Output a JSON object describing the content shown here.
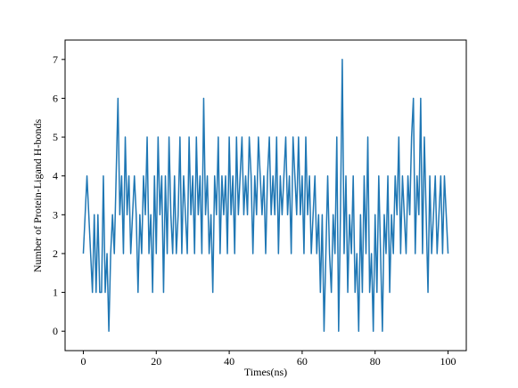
{
  "chart_data": {
    "type": "line",
    "xlabel": "Times(ns)",
    "ylabel": "Number of Protein-Ligand H-bonds",
    "color": "#1f77b4",
    "xlim": [
      -5,
      105
    ],
    "ylim": [
      -0.5,
      7.5
    ],
    "xticks": [
      0,
      20,
      40,
      60,
      80,
      100
    ],
    "yticks": [
      0,
      1,
      2,
      3,
      4,
      5,
      6,
      7
    ],
    "grid": false,
    "x": [
      0,
      0.5,
      1,
      1.5,
      2,
      2.5,
      3,
      3.5,
      4,
      4.5,
      5,
      5.5,
      6,
      6.5,
      7,
      7.5,
      8,
      8.5,
      9,
      9.5,
      10,
      10.5,
      11,
      11.5,
      12,
      12.5,
      13,
      13.5,
      14,
      14.5,
      15,
      15.5,
      16,
      16.5,
      17,
      17.5,
      18,
      18.5,
      19,
      19.5,
      20,
      20.5,
      21,
      21.5,
      22,
      22.5,
      23,
      23.5,
      24,
      24.5,
      25,
      25.5,
      26,
      26.5,
      27,
      27.5,
      28,
      28.5,
      29,
      29.5,
      30,
      30.5,
      31,
      31.5,
      32,
      32.5,
      33,
      33.5,
      34,
      34.5,
      35,
      35.5,
      36,
      36.5,
      37,
      37.5,
      38,
      38.5,
      39,
      39.5,
      40,
      40.5,
      41,
      41.5,
      42,
      42.5,
      43,
      43.5,
      44,
      44.5,
      45,
      45.5,
      46,
      46.5,
      47,
      47.5,
      48,
      48.5,
      49,
      49.5,
      50,
      50.5,
      51,
      51.5,
      52,
      52.5,
      53,
      53.5,
      54,
      54.5,
      55,
      55.5,
      56,
      56.5,
      57,
      57.5,
      58,
      58.5,
      59,
      59.5,
      60,
      60.5,
      61,
      61.5,
      62,
      62.5,
      63,
      63.5,
      64,
      64.5,
      65,
      65.5,
      66,
      66.5,
      67,
      67.5,
      68,
      68.5,
      69,
      69.5,
      70,
      70.5,
      71,
      71.5,
      72,
      72.5,
      73,
      73.5,
      74,
      74.5,
      75,
      75.5,
      76,
      76.5,
      77,
      77.5,
      78,
      78.5,
      79,
      79.5,
      80,
      80.5,
      81,
      81.5,
      82,
      82.5,
      83,
      83.5,
      84,
      84.5,
      85,
      85.5,
      86,
      86.5,
      87,
      87.5,
      88,
      88.5,
      89,
      89.5,
      90,
      90.5,
      91,
      91.5,
      92,
      92.5,
      93,
      93.5,
      94,
      94.5,
      95,
      95.5,
      96,
      96.5,
      97,
      97.5,
      98,
      98.5,
      99,
      99.5,
      100
    ],
    "values": [
      2,
      3,
      4,
      3,
      2,
      1,
      3,
      1,
      3,
      1,
      1,
      4,
      1,
      2,
      0,
      2,
      3,
      2,
      4,
      6,
      3,
      4,
      2,
      5,
      3,
      4,
      2,
      3,
      4,
      3,
      1,
      3,
      2,
      4,
      3,
      5,
      2,
      3,
      1,
      4,
      2,
      5,
      3,
      4,
      1,
      4,
      2,
      5,
      3,
      2,
      4,
      2,
      3,
      5,
      2,
      4,
      3,
      2,
      5,
      3,
      4,
      2,
      5,
      3,
      4,
      2,
      6,
      3,
      4,
      2,
      3,
      1,
      4,
      3,
      5,
      2,
      4,
      3,
      4,
      2,
      5,
      3,
      4,
      2,
      5,
      3,
      4,
      5,
      3,
      4,
      3,
      5,
      4,
      2,
      4,
      3,
      5,
      4,
      3,
      4,
      2,
      4,
      5,
      3,
      4,
      3,
      5,
      2,
      4,
      3,
      4,
      5,
      3,
      4,
      2,
      5,
      4,
      3,
      5,
      3,
      4,
      2,
      5,
      3,
      4,
      2,
      3,
      4,
      2,
      3,
      1,
      3,
      0,
      2,
      4,
      2,
      1,
      3,
      2,
      5,
      0,
      3,
      7,
      2,
      4,
      1,
      3,
      2,
      4,
      1,
      2,
      0,
      3,
      1,
      4,
      2,
      5,
      1,
      2,
      0,
      3,
      1,
      4,
      2,
      0,
      3,
      2,
      4,
      1,
      3,
      2,
      4,
      3,
      5,
      2,
      4,
      3,
      2,
      4,
      3,
      5,
      6,
      2,
      4,
      3,
      6,
      2,
      5,
      3,
      1,
      4,
      2,
      3,
      4,
      2,
      3,
      4,
      2,
      4,
      3,
      2
    ]
  }
}
